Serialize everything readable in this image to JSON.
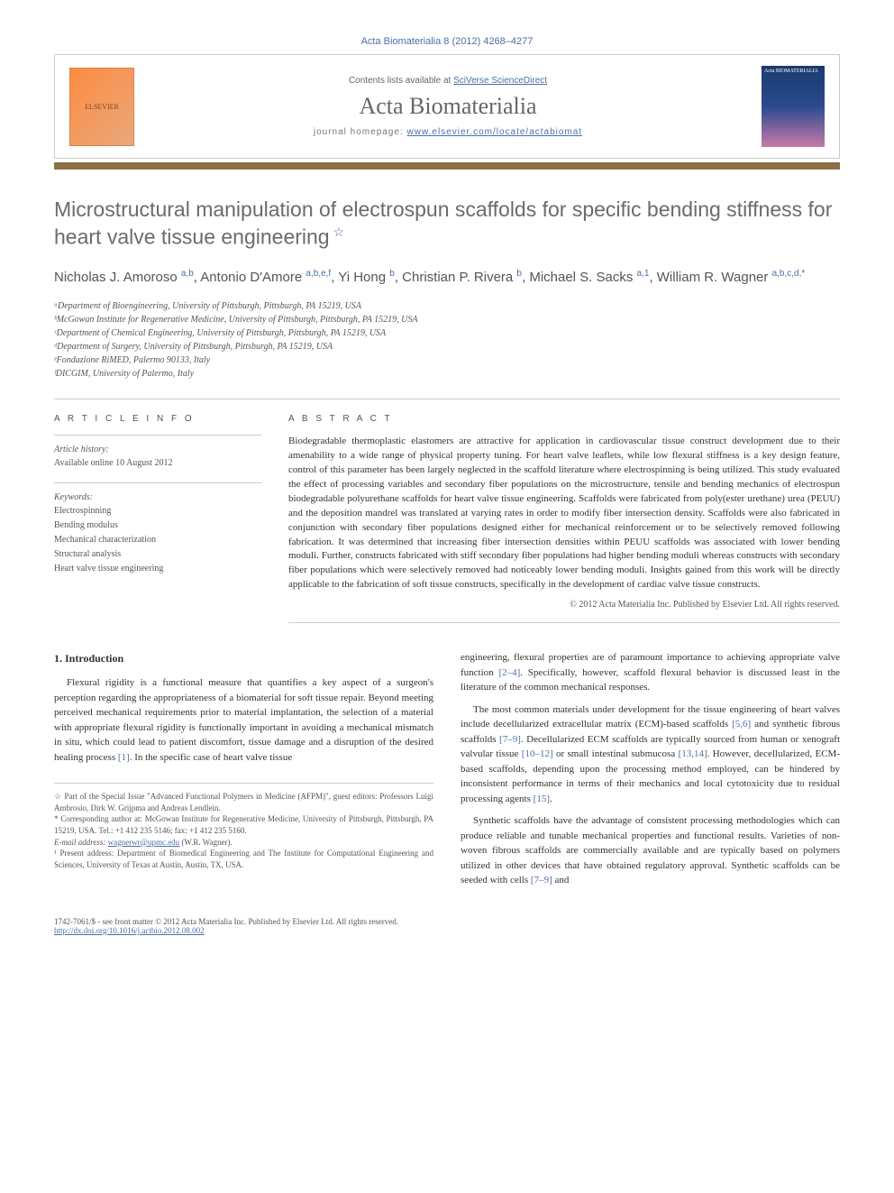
{
  "citation": "Acta Biomaterialia 8 (2012) 4268–4277",
  "header": {
    "contents_prefix": "Contents lists available at ",
    "contents_link": "SciVerse ScienceDirect",
    "journal": "Acta Biomaterialia",
    "homepage_prefix": "journal homepage: ",
    "homepage_link": "www.elsevier.com/locate/actabiomat",
    "elsevier_label": "ELSEVIER",
    "cover_label": "Acta BIOMATERIALIA"
  },
  "title": "Microstructural manipulation of electrospun scaffolds for specific bending stiffness for heart valve tissue engineering",
  "authors_html": "Nicholas J. Amoroso <sup>a,b</sup>, Antonio D'Amore <sup>a,b,e,f</sup>, Yi Hong <sup>b</sup>, Christian P. Rivera <sup>b</sup>, Michael S. Sacks <sup>a,1</sup>, William R. Wagner <sup>a,b,c,d,*</sup>",
  "affiliations": [
    "ᵃDepartment of Bioengineering, University of Pittsburgh, Pittsburgh, PA 15219, USA",
    "ᵇMcGowan Institute for Regenerative Medicine, University of Pittsburgh, Pittsburgh, PA 15219, USA",
    "ᶜDepartment of Chemical Engineering, University of Pittsburgh, Pittsburgh, PA 15219, USA",
    "ᵈDepartment of Surgery, University of Pittsburgh, Pittsburgh, PA 15219, USA",
    "ᵉFondazione RiMED, Palermo 90133, Italy",
    "ᶠDICGIM, University of Palermo, Italy"
  ],
  "article_info": {
    "head": "A R T I C L E   I N F O",
    "history_label": "Article history:",
    "history_value": "Available online 10 August 2012",
    "keywords_label": "Keywords:",
    "keywords": [
      "Electrospinning",
      "Bending modulus",
      "Mechanical characterization",
      "Structural analysis",
      "Heart valve tissue engineering"
    ]
  },
  "abstract": {
    "head": "A B S T R A C T",
    "text": "Biodegradable thermoplastic elastomers are attractive for application in cardiovascular tissue construct development due to their amenability to a wide range of physical property tuning. For heart valve leaflets, while low flexural stiffness is a key design feature, control of this parameter has been largely neglected in the scaffold literature where electrospinning is being utilized. This study evaluated the effect of processing variables and secondary fiber populations on the microstructure, tensile and bending mechanics of electrospun biodegradable polyurethane scaffolds for heart valve tissue engineering. Scaffolds were fabricated from poly(ester urethane) urea (PEUU) and the deposition mandrel was translated at varying rates in order to modify fiber intersection density. Scaffolds were also fabricated in conjunction with secondary fiber populations designed either for mechanical reinforcement or to be selectively removed following fabrication. It was determined that increasing fiber intersection densities within PEUU scaffolds was associated with lower bending moduli. Further, constructs fabricated with stiff secondary fiber populations had higher bending moduli whereas constructs with secondary fiber populations which were selectively removed had noticeably lower bending moduli. Insights gained from this work will be directly applicable to the fabrication of soft tissue constructs, specifically in the development of cardiac valve tissue constructs.",
    "copyright": "© 2012 Acta Materialia Inc. Published by Elsevier Ltd. All rights reserved."
  },
  "body": {
    "section_title": "1. Introduction",
    "p1": "Flexural rigidity is a functional measure that quantifies a key aspect of a surgeon's perception regarding the appropriateness of a biomaterial for soft tissue repair. Beyond meeting perceived mechanical requirements prior to material implantation, the selection of a material with appropriate flexural rigidity is functionally important in avoiding a mechanical mismatch in situ, which could lead to patient discomfort, tissue damage and a disruption of the desired healing process [1]. In the specific case of heart valve tissue",
    "p2": "engineering, flexural properties are of paramount importance to achieving appropriate valve function [2–4]. Specifically, however, scaffold flexural behavior is discussed least in the literature of the common mechanical responses.",
    "p3": "The most common materials under development for the tissue engineering of heart valves include decellularized extracellular matrix (ECM)-based scaffolds [5,6] and synthetic fibrous scaffolds [7–9]. Decellularized ECM scaffolds are typically sourced from human or xenograft valvular tissue [10–12] or small intestinal submucosa [13,14]. However, decellularized, ECM-based scaffolds, depending upon the processing method employed, can be hindered by inconsistent performance in terms of their mechanics and local cytotoxicity due to residual processing agents [15].",
    "p4": "Synthetic scaffolds have the advantage of consistent processing methodologies which can produce reliable and tunable mechanical properties and functional results. Varieties of non-woven fibrous scaffolds are commercially available and are typically based on polymers utilized in other devices that have obtained regulatory approval. Synthetic scaffolds can be seeded with cells [7–9] and"
  },
  "footnotes": {
    "star": "☆ Part of the Special Issue \"Advanced Functional Polymers in Medicine (AFPM)\", guest editors: Professors Luigi Ambrosio, Dirk W. Grijpma and Andreas Lendlein.",
    "corr": "* Corresponding author at: McGowan Institute for Regenerative Medicine, University of Pittsburgh, Pittsburgh, PA 15219, USA. Tel.: +1 412 235 5146; fax: +1 412 235 5160.",
    "email_label": "E-mail address: ",
    "email": "wagnerwr@upmc.edu",
    "email_suffix": " (W.R. Wagner).",
    "present": "¹ Present address: Department of Biomedical Engineering and The Institute for Computational Engineering and Sciences, University of Texas at Austin, Austin, TX, USA."
  },
  "footer": {
    "issn": "1742-7061/$ - see front matter © 2012 Acta Materialia Inc. Published by Elsevier Ltd. All rights reserved.",
    "doi": "http://dx.doi.org/10.1016/j.actbio.2012.08.002"
  },
  "colors": {
    "link": "#4a6fa5",
    "bar": "#8b6f47",
    "title_gray": "#6b6b6b"
  }
}
